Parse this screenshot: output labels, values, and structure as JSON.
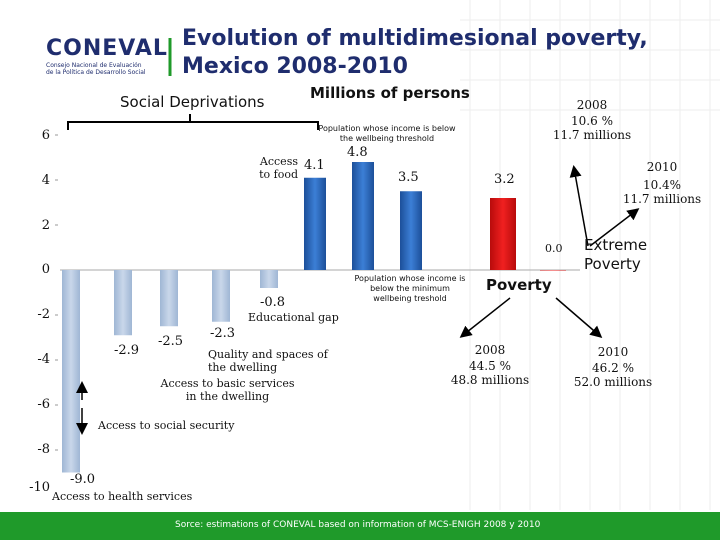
{
  "header": {
    "logo_word": "CONEVAL",
    "logo_sub_line1": "Consejo Nacional de Evaluación",
    "logo_sub_line2": "de la Política de Desarrollo Social",
    "title_line1": "Evolution of multidimesional poverty,",
    "title_line2": "Mexico 2008-2010"
  },
  "headings": {
    "social_deprivations": "Social Deprivations",
    "millions_of_persons": "Millions of persons",
    "poverty": "Poverty",
    "extreme_poverty_line1": "Extreme",
    "extreme_poverty_line2": "Poverty"
  },
  "side_info": {
    "extreme_2008": {
      "year": "2008",
      "pct": "10.6 %",
      "millions": "11.7 millions"
    },
    "extreme_2010": {
      "year": "2010",
      "pct": "10.4%",
      "millions": "11.7 millions"
    },
    "poverty_2008": {
      "year": "2008",
      "pct": "44.5 %",
      "millions": "48.8 millions"
    },
    "poverty_2010": {
      "year": "2010",
      "pct": "46.2 %",
      "millions": "52.0 millions"
    }
  },
  "footer": {
    "source": "Sorce: estimations of CONEVAL based on information  of  MCS-ENIGH 2008 y 2010"
  },
  "colors": {
    "bar_blue": "#2e6cc0",
    "bar_light": "#b3c6df",
    "bar_red": "#d81313",
    "footer_green": "#1f9a2a",
    "title_blue": "#1f2d6e"
  },
  "chart_data": {
    "type": "bar",
    "ylim": [
      -10,
      6
    ],
    "yticks": [
      "6",
      "4",
      "2",
      "0",
      "-2",
      "-4",
      "-6",
      "-8",
      "-10"
    ],
    "categories": [
      "Access to health services",
      "Access to social security",
      "Access to basic services in the dwelling",
      "Quality and spaces of the dwelling",
      "Educational gap",
      "Access to food",
      "Population whose income is below the wellbeing threshold",
      "Population whose income is below the minimum wellbeing treshold",
      "Poverty",
      "Extreme Poverty"
    ],
    "values": [
      -9.0,
      -2.9,
      -2.5,
      -2.3,
      -0.8,
      4.1,
      4.8,
      3.5,
      3.2,
      0.0
    ],
    "value_labels": [
      "-9.0",
      "-2.9",
      "-2.5",
      "-2.3",
      "-0.8",
      "4.1",
      "4.8",
      "3.5",
      "3.2",
      "0.0"
    ],
    "bar_styles": [
      "light",
      "light",
      "light",
      "light",
      "light",
      "blue",
      "blue",
      "blue",
      "red",
      "red"
    ]
  }
}
